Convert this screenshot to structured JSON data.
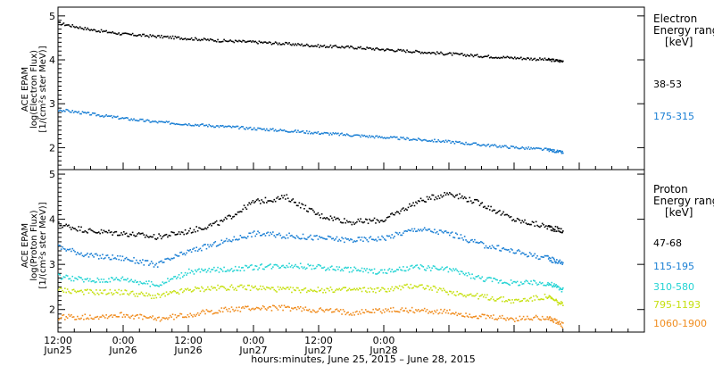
{
  "chart_data": [
    {
      "type": "scatter",
      "instrument_label": "ACE EPAM",
      "ylabel": "log(Electron Flux)",
      "yunits": "[1/(cm²s ster MeV)]",
      "ylim": [
        1.5,
        5.2
      ],
      "yticks": [
        "2",
        "3",
        "4",
        "5"
      ],
      "legend_title": [
        "Electron",
        "Energy ranges",
        "[keV]"
      ],
      "series": [
        {
          "name": "38-53",
          "color": "#000000",
          "x": [
            0,
            6,
            12,
            18,
            24,
            30,
            36,
            42,
            48,
            54,
            60,
            66,
            72,
            78,
            84,
            90,
            93
          ],
          "y": [
            4.85,
            4.7,
            4.6,
            4.55,
            4.5,
            4.45,
            4.42,
            4.38,
            4.33,
            4.3,
            4.25,
            4.2,
            4.15,
            4.1,
            4.06,
            4.02,
            3.98
          ]
        },
        {
          "name": "175-315",
          "color": "#1a7fd4",
          "x": [
            0,
            6,
            12,
            18,
            24,
            30,
            36,
            42,
            48,
            54,
            60,
            66,
            72,
            78,
            84,
            90,
            93
          ],
          "y": [
            2.88,
            2.78,
            2.68,
            2.6,
            2.55,
            2.5,
            2.45,
            2.4,
            2.35,
            2.3,
            2.25,
            2.2,
            2.15,
            2.08,
            2.02,
            1.97,
            1.9
          ]
        }
      ]
    },
    {
      "type": "scatter",
      "instrument_label": "ACE EPAM",
      "ylabel": "log(Proton Flux)",
      "yunits": "[1/(cm²s ster MeV)]",
      "ylim": [
        1.5,
        5.1
      ],
      "yticks": [
        "2",
        "3",
        "4",
        "5"
      ],
      "legend_title": [
        "Proton",
        "Energy ranges",
        "[keV]"
      ],
      "series": [
        {
          "name": "47-68",
          "color": "#000000",
          "x": [
            0,
            6,
            12,
            18,
            24,
            30,
            36,
            42,
            48,
            54,
            60,
            66,
            72,
            78,
            84,
            90,
            93
          ],
          "y": [
            3.9,
            3.75,
            3.7,
            3.62,
            3.75,
            3.95,
            4.4,
            4.5,
            4.1,
            3.95,
            4.0,
            4.4,
            4.6,
            4.35,
            4.0,
            3.85,
            3.75
          ]
        },
        {
          "name": "115-195",
          "color": "#1a7fd4",
          "x": [
            0,
            6,
            12,
            18,
            24,
            30,
            36,
            42,
            48,
            54,
            60,
            66,
            72,
            78,
            84,
            90,
            93
          ],
          "y": [
            3.4,
            3.2,
            3.15,
            3.0,
            3.3,
            3.5,
            3.7,
            3.65,
            3.6,
            3.55,
            3.6,
            3.8,
            3.7,
            3.45,
            3.3,
            3.15,
            3.05
          ]
        },
        {
          "name": "310-580",
          "color": "#22d3d3",
          "x": [
            0,
            6,
            12,
            18,
            24,
            30,
            36,
            42,
            48,
            54,
            60,
            66,
            72,
            78,
            84,
            90,
            93
          ],
          "y": [
            2.75,
            2.65,
            2.7,
            2.55,
            2.85,
            2.9,
            2.95,
            3.0,
            2.95,
            2.9,
            2.85,
            2.95,
            2.9,
            2.7,
            2.6,
            2.6,
            2.45
          ]
        },
        {
          "name": "795-1193",
          "color": "#c6e010",
          "x": [
            0,
            6,
            12,
            18,
            24,
            30,
            36,
            42,
            48,
            54,
            60,
            66,
            72,
            78,
            84,
            90,
            93
          ],
          "y": [
            2.45,
            2.4,
            2.4,
            2.3,
            2.45,
            2.5,
            2.5,
            2.45,
            2.45,
            2.45,
            2.45,
            2.55,
            2.4,
            2.3,
            2.2,
            2.3,
            2.1
          ]
        },
        {
          "name": "1060-1900",
          "color": "#f08c1e",
          "x": [
            0,
            6,
            12,
            18,
            24,
            30,
            36,
            42,
            48,
            54,
            60,
            66,
            72,
            78,
            84,
            90,
            93
          ],
          "y": [
            1.85,
            1.85,
            1.9,
            1.8,
            1.9,
            2.0,
            2.05,
            2.05,
            2.0,
            1.95,
            2.0,
            2.0,
            1.95,
            1.85,
            1.8,
            1.85,
            1.65
          ]
        }
      ]
    }
  ],
  "x_axis": {
    "xlim": [
      0,
      108
    ],
    "ticks": [
      {
        "x": 0,
        "time": "12:00",
        "date": "Jun25"
      },
      {
        "x": 12,
        "time": "0:00",
        "date": "Jun26"
      },
      {
        "x": 24,
        "time": "12:00",
        "date": "Jun26"
      },
      {
        "x": 36,
        "time": "0:00",
        "date": "Jun27"
      },
      {
        "x": 48,
        "time": "12:00",
        "date": "Jun27"
      },
      {
        "x": 60,
        "time": "0:00",
        "date": "Jun28"
      }
    ],
    "label": "hours:minutes, June 25, 2015 – June 28, 2015"
  }
}
